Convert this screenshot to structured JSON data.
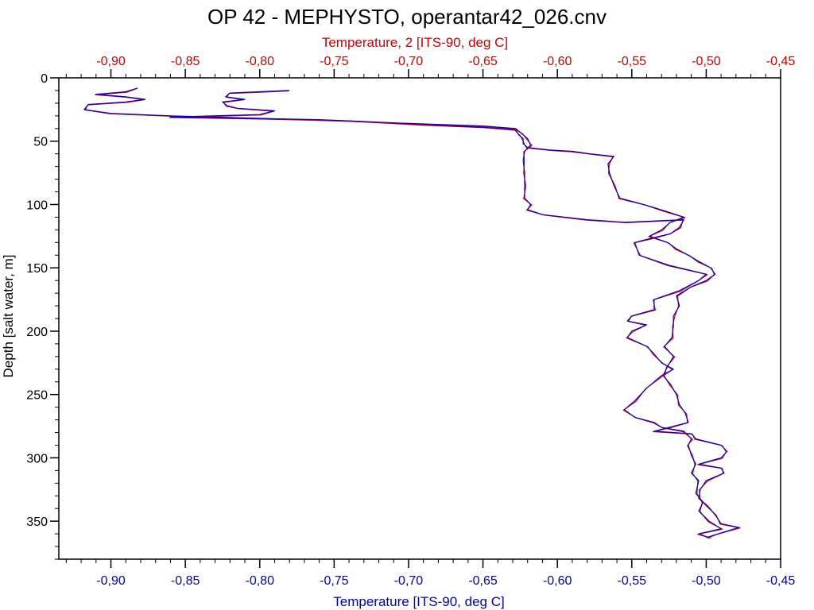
{
  "chart_data": {
    "type": "line",
    "title": "OP 42 - MEPHYSTO, operantar42_026.cnv",
    "xlabel": "Temperature [ITS-90, deg C]",
    "x2label": "Temperature, 2 [ITS-90, deg C]",
    "ylabel": "Depth [salt water, m]",
    "xlim": [
      -0.935,
      -0.45
    ],
    "ylim": [
      0,
      380
    ],
    "y_inverted": true,
    "x_ticks": [
      "-0,90",
      "-0,85",
      "-0,80",
      "-0,75",
      "-0,70",
      "-0,65",
      "-0,60",
      "-0,55",
      "-0,50",
      "-0,45"
    ],
    "x_tick_values": [
      -0.9,
      -0.85,
      -0.8,
      -0.75,
      -0.7,
      -0.65,
      -0.6,
      -0.55,
      -0.5,
      -0.45
    ],
    "y_ticks": [
      "0",
      "50",
      "100",
      "150",
      "200",
      "250",
      "300",
      "350"
    ],
    "y_tick_values": [
      0,
      50,
      100,
      150,
      200,
      250,
      300,
      350
    ],
    "colors": {
      "primary": "#0000c8",
      "secondary": "#e00000",
      "axis": "#000000"
    },
    "series": [
      {
        "axis": "bottom",
        "color": "#0000c8",
        "points": [
          [
            -0.882,
            8
          ],
          [
            -0.89,
            11
          ],
          [
            -0.91,
            13
          ],
          [
            -0.89,
            15
          ],
          [
            -0.877,
            17
          ],
          [
            -0.89,
            19
          ],
          [
            -0.915,
            21
          ],
          [
            -0.918,
            25
          ],
          [
            -0.9,
            28
          ],
          [
            -0.86,
            30
          ],
          [
            -0.8,
            32
          ],
          [
            -0.74,
            34
          ],
          [
            -0.69,
            37
          ],
          [
            -0.65,
            39
          ],
          [
            -0.628,
            41
          ],
          [
            -0.626,
            45
          ],
          [
            -0.623,
            48
          ],
          [
            -0.623,
            52
          ],
          [
            -0.62,
            55
          ],
          [
            -0.605,
            57
          ],
          [
            -0.59,
            58
          ],
          [
            -0.578,
            60
          ],
          [
            -0.562,
            62
          ],
          [
            -0.566,
            68
          ],
          [
            -0.565,
            75
          ],
          [
            -0.562,
            85
          ],
          [
            -0.558,
            95
          ],
          [
            -0.542,
            100
          ],
          [
            -0.528,
            105
          ],
          [
            -0.515,
            110
          ],
          [
            -0.524,
            114
          ],
          [
            -0.53,
            120
          ],
          [
            -0.538,
            125
          ],
          [
            -0.526,
            130
          ],
          [
            -0.52,
            135
          ],
          [
            -0.512,
            140
          ],
          [
            -0.505,
            145
          ],
          [
            -0.497,
            150
          ],
          [
            -0.494,
            155
          ],
          [
            -0.5,
            160
          ],
          [
            -0.51,
            165
          ],
          [
            -0.52,
            172
          ],
          [
            -0.518,
            180
          ],
          [
            -0.522,
            188
          ],
          [
            -0.522,
            196
          ],
          [
            -0.523,
            205
          ],
          [
            -0.528,
            212
          ],
          [
            -0.522,
            220
          ],
          [
            -0.526,
            228
          ],
          [
            -0.529,
            235
          ],
          [
            -0.524,
            242
          ],
          [
            -0.52,
            250
          ],
          [
            -0.518,
            258
          ],
          [
            -0.514,
            265
          ],
          [
            -0.512,
            272
          ],
          [
            -0.525,
            276
          ],
          [
            -0.535,
            279
          ],
          [
            -0.51,
            281
          ],
          [
            -0.507,
            285
          ],
          [
            -0.49,
            290
          ],
          [
            -0.486,
            295
          ],
          [
            -0.49,
            300
          ],
          [
            -0.505,
            305
          ],
          [
            -0.49,
            308
          ],
          [
            -0.488,
            312
          ],
          [
            -0.5,
            318
          ],
          [
            -0.504,
            325
          ],
          [
            -0.505,
            332
          ],
          [
            -0.499,
            338
          ],
          [
            -0.494,
            345
          ],
          [
            -0.49,
            352
          ],
          [
            -0.478,
            355
          ],
          [
            -0.492,
            360
          ],
          [
            -0.5,
            363
          ]
        ]
      },
      {
        "axis": "bottom",
        "color": "#0000c8",
        "points": [
          [
            -0.78,
            10
          ],
          [
            -0.8,
            11
          ],
          [
            -0.82,
            12
          ],
          [
            -0.823,
            15
          ],
          [
            -0.81,
            17
          ],
          [
            -0.825,
            19
          ],
          [
            -0.822,
            22
          ],
          [
            -0.815,
            24
          ],
          [
            -0.79,
            26
          ],
          [
            -0.8,
            29
          ],
          [
            -0.86,
            31
          ],
          [
            -0.76,
            33
          ],
          [
            -0.7,
            36
          ],
          [
            -0.65,
            38
          ],
          [
            -0.628,
            40
          ],
          [
            -0.624,
            44
          ],
          [
            -0.62,
            48
          ],
          [
            -0.618,
            53
          ],
          [
            -0.622,
            58
          ],
          [
            -0.623,
            65
          ],
          [
            -0.622,
            75
          ],
          [
            -0.622,
            85
          ],
          [
            -0.622,
            95
          ],
          [
            -0.618,
            100
          ],
          [
            -0.62,
            104
          ],
          [
            -0.61,
            108
          ],
          [
            -0.58,
            112
          ],
          [
            -0.555,
            114
          ],
          [
            -0.515,
            112
          ],
          [
            -0.518,
            118
          ],
          [
            -0.524,
            123
          ],
          [
            -0.538,
            127
          ],
          [
            -0.548,
            130
          ],
          [
            -0.545,
            140
          ],
          [
            -0.525,
            148
          ],
          [
            -0.5,
            155
          ],
          [
            -0.505,
            160
          ],
          [
            -0.518,
            168
          ],
          [
            -0.535,
            175
          ],
          [
            -0.535,
            183
          ],
          [
            -0.55,
            188
          ],
          [
            -0.553,
            192
          ],
          [
            -0.54,
            195
          ],
          [
            -0.55,
            200
          ],
          [
            -0.553,
            205
          ],
          [
            -0.54,
            212
          ],
          [
            -0.535,
            218
          ],
          [
            -0.53,
            225
          ],
          [
            -0.522,
            230
          ],
          [
            -0.53,
            235
          ],
          [
            -0.54,
            245
          ],
          [
            -0.548,
            255
          ],
          [
            -0.555,
            262
          ],
          [
            -0.548,
            268
          ],
          [
            -0.535,
            272
          ],
          [
            -0.53,
            276
          ],
          [
            -0.515,
            279
          ],
          [
            -0.51,
            285
          ],
          [
            -0.512,
            290
          ],
          [
            -0.51,
            298
          ],
          [
            -0.507,
            305
          ],
          [
            -0.51,
            312
          ],
          [
            -0.505,
            318
          ],
          [
            -0.507,
            328
          ],
          [
            -0.502,
            335
          ],
          [
            -0.505,
            342
          ],
          [
            -0.498,
            350
          ],
          [
            -0.49,
            356
          ],
          [
            -0.505,
            360
          ],
          [
            -0.498,
            363
          ]
        ]
      }
    ]
  }
}
